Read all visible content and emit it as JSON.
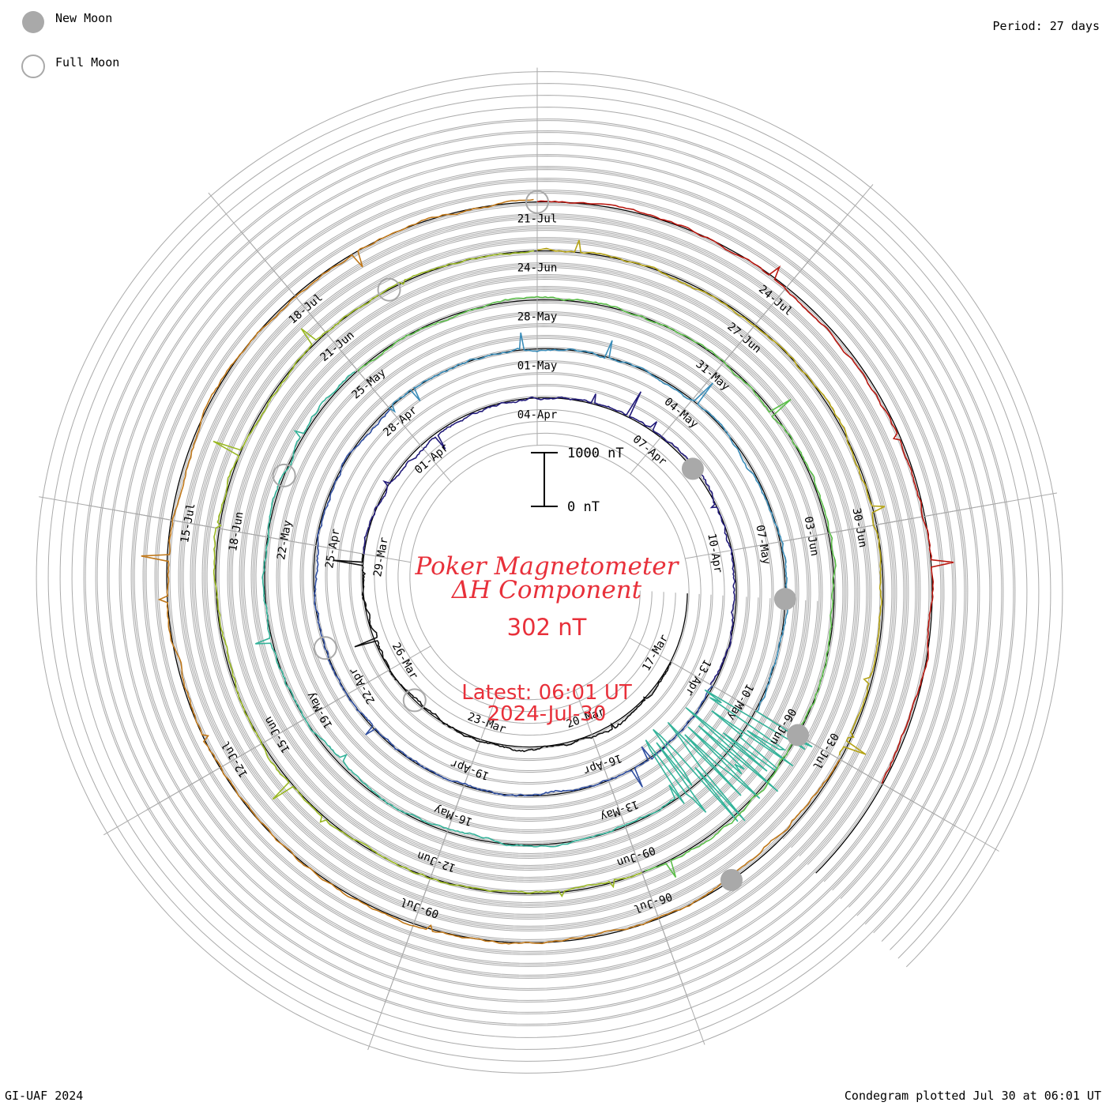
{
  "legend": {
    "new_moon": "New Moon",
    "full_moon": "Full Moon",
    "period": "Period: 27 days"
  },
  "title": {
    "line1": "Poker Magnetometer",
    "line2": "ΔH Component",
    "value": "302 nT",
    "latest": "Latest: 06:01 UT",
    "date": "2024-Jul-30"
  },
  "scale_bar": {
    "top_label": "1000 nT",
    "bottom_label": "0 nT"
  },
  "footer": {
    "credit": "GI-UAF 2024",
    "plotted": "Condegram plotted Jul 30 at 06:01 UT"
  },
  "colors": {
    "title": "#e8303a",
    "grid": "#aaaaaa",
    "baseline": "#000000",
    "moon_new": "#a9a9a9",
    "moon_full": "#a9a9a9"
  },
  "chart_data": {
    "type": "line",
    "subtype": "spiral condegram",
    "title": "Poker Magnetometer ΔH Component",
    "period_days": 27,
    "units": "nT",
    "scale_bar_nT": [
      0,
      1000
    ],
    "series": [
      {
        "color": "#111111",
        "start": "2024-03-17",
        "end": "2024-03-29",
        "date_labels": [
          "17-Mar",
          "20-Mar",
          "23-Mar",
          "26-Mar",
          "29-Mar"
        ]
      },
      {
        "color": "#221b7a",
        "start": "2024-03-29",
        "end": "2024-04-13",
        "date_labels": [
          "01-Apr",
          "04-Apr",
          "07-Apr",
          "10-Apr",
          "13-Apr"
        ]
      },
      {
        "color": "#2f4ea0",
        "start": "2024-04-13",
        "end": "2024-04-28",
        "date_labels": [
          "16-Apr",
          "19-Apr",
          "22-Apr",
          "25-Apr",
          "28-Apr"
        ]
      },
      {
        "color": "#3a8cb8",
        "start": "2024-04-28",
        "end": "2024-05-10",
        "date_labels": [
          "01-May",
          "04-May",
          "07-May",
          "10-May"
        ]
      },
      {
        "color": "#34b39a",
        "start": "2024-05-10",
        "end": "2024-05-25",
        "date_labels": [
          "13-May",
          "16-May",
          "19-May",
          "22-May",
          "25-May"
        ]
      },
      {
        "color": "#5cbf4a",
        "start": "2024-05-25",
        "end": "2024-06-09",
        "date_labels": [
          "28-May",
          "31-May",
          "03-Jun",
          "06-Jun",
          "09-Jun"
        ]
      },
      {
        "color": "#9ab822",
        "start": "2024-06-09",
        "end": "2024-06-24",
        "date_labels": [
          "12-Jun",
          "15-Jun",
          "18-Jun",
          "21-Jun",
          "24-Jun"
        ]
      },
      {
        "color": "#b5a314",
        "start": "2024-06-24",
        "end": "2024-07-03",
        "date_labels": [
          "27-Jun",
          "30-Jun",
          "03-Jul"
        ]
      },
      {
        "color": "#c0781a",
        "start": "2024-07-03",
        "end": "2024-07-21",
        "date_labels": [
          "06-Jul",
          "09-Jul",
          "12-Jul",
          "15-Jul",
          "18-Jul",
          "21-Jul"
        ]
      },
      {
        "color": "#b8170f",
        "start": "2024-07-21",
        "end": "2024-07-30",
        "date_labels": [
          "24-Jul"
        ]
      }
    ],
    "moon_phases": {
      "new_moon": [
        "2024-04-08",
        "2024-05-08",
        "2024-06-06",
        "2024-07-05"
      ],
      "full_moon": [
        "2024-03-25",
        "2024-04-23",
        "2024-05-23",
        "2024-06-22",
        "2024-07-21"
      ]
    },
    "latest": {
      "value_nT": 302,
      "time": "2024-07-30 06:01 UT"
    }
  }
}
